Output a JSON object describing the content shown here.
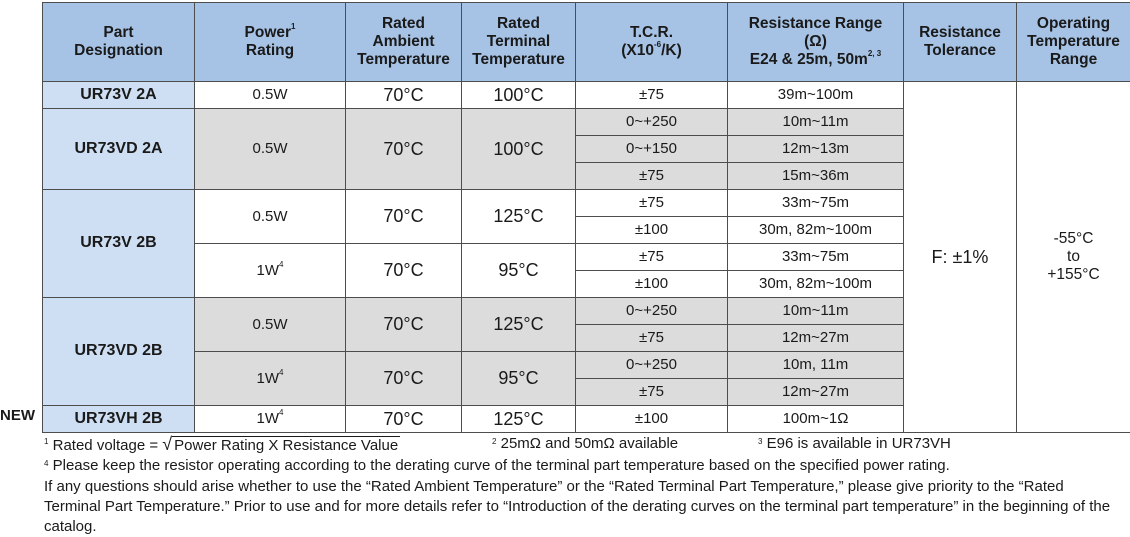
{
  "headers": {
    "part_l1": "Part",
    "part_l2": "Designation",
    "power_l1": "Power",
    "power_sup": "1",
    "power_l2": "Rating",
    "amb_l1": "Rated",
    "amb_l2": "Ambient",
    "amb_l3": "Temperature",
    "term_l1": "Rated",
    "term_l2": "Terminal",
    "term_l3": "Temperature",
    "tcr_l1": "T.C.R.",
    "tcr_l2a": "(X10",
    "tcr_l2sup": "-6",
    "tcr_l2b": "/K)",
    "rr_l1": "Resistance Range",
    "rr_l2": "(Ω)",
    "rr_l3": "E24 & 25m, 50m",
    "rr_l3sup": "2, 3",
    "tol_l1": "Resistance",
    "tol_l2": "Tolerance",
    "op_l1": "Operating",
    "op_l2": "Temperature",
    "op_l3": "Range"
  },
  "groups": {
    "g1": {
      "part": "UR73V 2A",
      "power": "0.5W",
      "ambient": "70°C",
      "terminal": "100°C",
      "rows": [
        {
          "tcr": "±75",
          "range": "39m~100m"
        }
      ]
    },
    "g2": {
      "part": "UR73VD 2A",
      "power": "0.5W",
      "ambient": "70°C",
      "terminal": "100°C",
      "rows": [
        {
          "tcr": "0~+250",
          "range": "10m~11m"
        },
        {
          "tcr": "0~+150",
          "range": "12m~13m"
        },
        {
          "tcr": "±75",
          "range": "15m~36m"
        }
      ]
    },
    "g3": {
      "part": "UR73V 2B",
      "sub1": {
        "power": "0.5W",
        "ambient": "70°C",
        "terminal": "125°C",
        "rows": [
          {
            "tcr": "±75",
            "range": "33m~75m"
          },
          {
            "tcr": "±100",
            "range": "30m, 82m~100m"
          }
        ]
      },
      "sub2": {
        "power": "1W",
        "power_sup": "4",
        "ambient": "70°C",
        "terminal": "95°C",
        "rows": [
          {
            "tcr": "±75",
            "range": "33m~75m"
          },
          {
            "tcr": "±100",
            "range": "30m, 82m~100m"
          }
        ]
      }
    },
    "g4": {
      "part": "UR73VD 2B",
      "sub1": {
        "power": "0.5W",
        "ambient": "70°C",
        "terminal": "125°C",
        "rows": [
          {
            "tcr": "0~+250",
            "range": "10m~11m"
          },
          {
            "tcr": "±75",
            "range": "12m~27m"
          }
        ]
      },
      "sub2": {
        "power": "1W",
        "power_sup": "4",
        "ambient": "70°C",
        "terminal": "95°C",
        "rows": [
          {
            "tcr": "0~+250",
            "range": "10m, 11m"
          },
          {
            "tcr": "±75",
            "range": "12m~27m"
          }
        ]
      }
    },
    "g5": {
      "new_label": "NEW",
      "part": "UR73VH 2B",
      "power": "1W",
      "power_sup": "4",
      "ambient": "70°C",
      "terminal": "125°C",
      "rows": [
        {
          "tcr": "±100",
          "range": "100m~1Ω"
        }
      ]
    }
  },
  "tolerance": "F: ±1%",
  "op_range": {
    "l1": "-55°C",
    "l2": "to",
    "l3": "+155°C"
  },
  "notes": {
    "n1_sup": "1",
    "n1_text": " Rated voltage = ",
    "n1_sqrt": "√",
    "n1_expr": "Power Rating X Resistance Value",
    "n2_sup": "2",
    "n2_text": " 25mΩ and 50mΩ available",
    "n3_sup": "3",
    "n3_text": " E96 is available in UR73VH",
    "n4_sup": "4",
    "n4_text": " Please keep the resistor operating according to the derating curve of the terminal part temperature based on the specified power rating.",
    "para": "If any questions should arise whether to use the “Rated Ambient Temperature” or the “Rated Terminal Part Temperature,” please give priority to the “Rated Terminal Part Temperature.” Prior to use and for more details refer to “Introduction of the derating curves on the terminal part temperature” in the beginning of the catalog."
  }
}
